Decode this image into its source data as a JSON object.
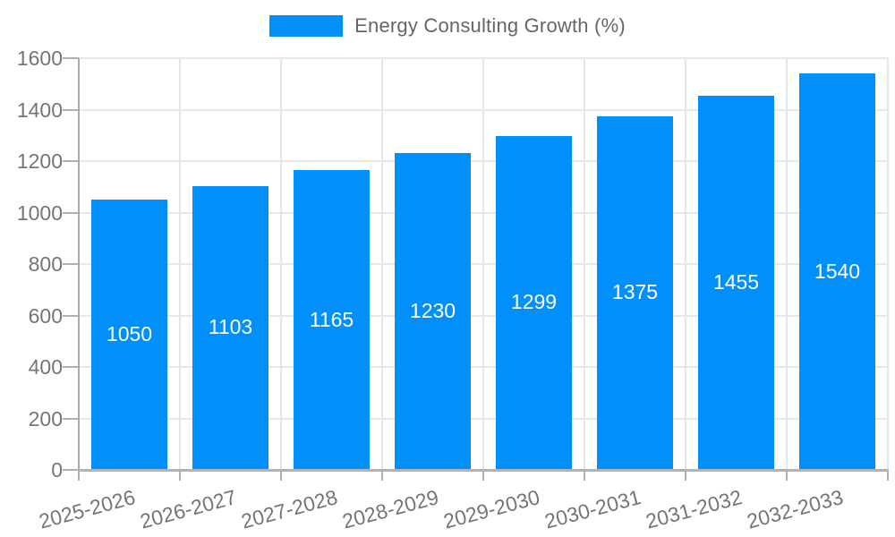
{
  "legend": {
    "label": "Energy Consulting Growth (%)"
  },
  "chart_data": {
    "type": "bar",
    "title": "Energy Consulting Growth (%)",
    "categories": [
      "2025-2026",
      "2026-2027",
      "2027-2028",
      "2028-2029",
      "2029-2030",
      "2030-2031",
      "2031-2032",
      "2032-2033"
    ],
    "values": [
      1050,
      1103,
      1165,
      1230,
      1299,
      1375,
      1455,
      1540
    ],
    "data_labels": [
      "1050",
      "1103",
      "1165",
      "1230",
      "1299",
      "1375",
      "1455",
      "1540"
    ],
    "yticks": [
      0,
      200,
      400,
      600,
      800,
      1000,
      1200,
      1400,
      1600
    ],
    "ylim": [
      0,
      1600
    ],
    "xlabel": "",
    "ylabel": "",
    "grid": true,
    "legend_position": "top-center",
    "bar_color": "#008FFB",
    "bar_label_color": "#ffffff",
    "axis_text_color": "#757575",
    "legend_text_color": "#666666",
    "gridline_color": "#e7e7e7"
  }
}
